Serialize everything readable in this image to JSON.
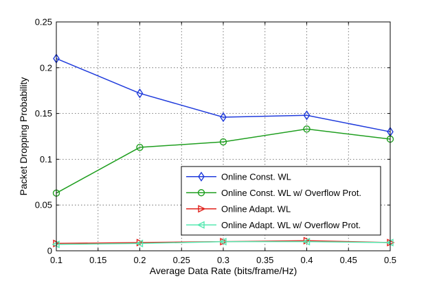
{
  "chart_data": {
    "type": "line",
    "title": "",
    "xlabel": "Average Data Rate (bits/frame/Hz)",
    "ylabel": "Packet Dropping Probability",
    "xlim": [
      0.1,
      0.5
    ],
    "ylim": [
      0,
      0.25
    ],
    "x": [
      0.1,
      0.2,
      0.3,
      0.4,
      0.5
    ],
    "xticks": [
      "0.1",
      "0.15",
      "0.2",
      "0.25",
      "0.3",
      "0.35",
      "0.4",
      "0.45",
      "0.5"
    ],
    "yticks": [
      "0",
      "0.05",
      "0.1",
      "0.15",
      "0.2",
      "0.25"
    ],
    "grid": true,
    "legend_position": "bottom-right",
    "series": [
      {
        "name": "Online Const. WL",
        "values": [
          0.21,
          0.172,
          0.146,
          0.148,
          0.13
        ],
        "color": "#1f3bdc",
        "marker": "diamond"
      },
      {
        "name": "Online Const. WL w/ Overflow Prot.",
        "values": [
          0.063,
          0.113,
          0.119,
          0.133,
          0.122
        ],
        "color": "#1e9e1e",
        "marker": "circle"
      },
      {
        "name": "Online Adapt. WL",
        "values": [
          0.008,
          0.009,
          0.01,
          0.011,
          0.009
        ],
        "color": "#e0201a",
        "marker": "triangle-right"
      },
      {
        "name": "Online Adapt. WL w/ Overflow Prot.",
        "values": [
          0.007,
          0.008,
          0.01,
          0.01,
          0.009
        ],
        "color": "#55e8b0",
        "marker": "triangle-left"
      }
    ]
  }
}
